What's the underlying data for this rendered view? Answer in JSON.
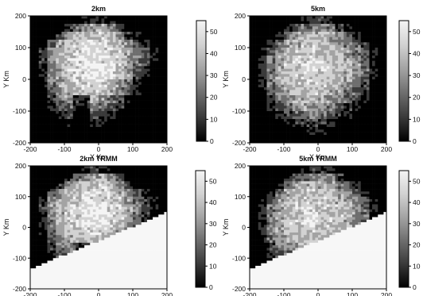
{
  "figure": {
    "colormap": [
      "#000000",
      "#3a3a3a",
      "#6e6e6e",
      "#a3a3a3",
      "#d2d2d2",
      "#f4f4f4"
    ],
    "nodata_color": "#f7f7f7"
  },
  "chart_data": [
    {
      "type": "heatmap",
      "title": "2km",
      "xlabel": "X Km",
      "ylabel": "Y Km",
      "xlim": [
        -200,
        200
      ],
      "ylim": [
        -200,
        200
      ],
      "xticks": [
        "-200",
        "-100",
        "0",
        "100",
        "200"
      ],
      "yticks": [
        "200",
        "100",
        "0",
        "-100",
        "-200"
      ],
      "colorbar": {
        "range": [
          0,
          55
        ],
        "ticks": [
          "50",
          "40",
          "30",
          "20",
          "10",
          "0"
        ]
      },
      "grid": false,
      "masked_swath": false,
      "values_dbz": [
        [
          0,
          0,
          0,
          0,
          0,
          0,
          10,
          14,
          8,
          6,
          0,
          0,
          0,
          0,
          0,
          0
        ],
        [
          0,
          0,
          0,
          0,
          12,
          22,
          28,
          30,
          34,
          25,
          15,
          0,
          0,
          0,
          0,
          0
        ],
        [
          0,
          0,
          0,
          12,
          28,
          34,
          36,
          38,
          40,
          35,
          28,
          14,
          6,
          0,
          0,
          0
        ],
        [
          0,
          0,
          18,
          30,
          36,
          40,
          42,
          44,
          40,
          38,
          34,
          28,
          18,
          8,
          0,
          0
        ],
        [
          0,
          10,
          26,
          34,
          38,
          42,
          46,
          44,
          42,
          40,
          38,
          32,
          24,
          14,
          4,
          0
        ],
        [
          0,
          12,
          28,
          36,
          40,
          44,
          48,
          46,
          44,
          42,
          40,
          34,
          26,
          16,
          6,
          0
        ],
        [
          0,
          10,
          26,
          34,
          40,
          44,
          46,
          48,
          46,
          44,
          40,
          32,
          22,
          12,
          0,
          0
        ],
        [
          0,
          8,
          24,
          32,
          38,
          42,
          44,
          46,
          44,
          42,
          36,
          28,
          18,
          8,
          0,
          0
        ],
        [
          0,
          6,
          22,
          30,
          36,
          40,
          42,
          44,
          40,
          36,
          30,
          22,
          12,
          0,
          0,
          0
        ],
        [
          0,
          0,
          18,
          28,
          32,
          36,
          38,
          40,
          36,
          32,
          24,
          16,
          6,
          0,
          0,
          0
        ],
        [
          0,
          0,
          14,
          24,
          28,
          12,
          10,
          36,
          30,
          24,
          18,
          8,
          0,
          0,
          0,
          0
        ],
        [
          0,
          0,
          8,
          18,
          20,
          8,
          6,
          28,
          24,
          16,
          10,
          0,
          0,
          0,
          0,
          0
        ],
        [
          0,
          0,
          0,
          10,
          12,
          0,
          0,
          18,
          14,
          8,
          0,
          0,
          0,
          0,
          0,
          0
        ],
        [
          0,
          0,
          0,
          0,
          6,
          0,
          0,
          8,
          6,
          0,
          0,
          0,
          0,
          0,
          0,
          0
        ],
        [
          0,
          0,
          0,
          0,
          0,
          0,
          0,
          0,
          0,
          0,
          0,
          0,
          0,
          0,
          0,
          0
        ],
        [
          0,
          0,
          0,
          0,
          0,
          0,
          0,
          0,
          0,
          0,
          0,
          0,
          0,
          0,
          0,
          0
        ]
      ]
    },
    {
      "type": "heatmap",
      "title": "5km",
      "xlabel": "X Km",
      "ylabel": "Y Km",
      "xlim": [
        -200,
        200
      ],
      "ylim": [
        -200,
        200
      ],
      "xticks": [
        "-200",
        "-100",
        "0",
        "100",
        "200"
      ],
      "yticks": [
        "200",
        "100",
        "0",
        "-100",
        "-200"
      ],
      "colorbar": {
        "range": [
          0,
          55
        ],
        "ticks": [
          "50",
          "40",
          "30",
          "20",
          "10",
          "0"
        ]
      },
      "grid": false,
      "masked_swath": false,
      "values_dbz": [
        [
          0,
          0,
          0,
          0,
          0,
          0,
          6,
          10,
          12,
          8,
          0,
          0,
          0,
          0,
          0,
          0
        ],
        [
          0,
          0,
          0,
          0,
          8,
          16,
          22,
          26,
          28,
          24,
          14,
          6,
          0,
          0,
          0,
          0
        ],
        [
          0,
          0,
          0,
          10,
          22,
          30,
          34,
          36,
          36,
          32,
          26,
          18,
          8,
          0,
          0,
          0
        ],
        [
          0,
          0,
          8,
          22,
          30,
          34,
          38,
          40,
          38,
          36,
          32,
          26,
          20,
          10,
          0,
          0
        ],
        [
          0,
          4,
          18,
          28,
          34,
          38,
          40,
          42,
          40,
          38,
          36,
          30,
          24,
          16,
          6,
          0
        ],
        [
          0,
          8,
          24,
          32,
          36,
          40,
          42,
          44,
          42,
          40,
          38,
          34,
          28,
          20,
          8,
          0
        ],
        [
          0,
          10,
          26,
          34,
          38,
          40,
          44,
          44,
          42,
          40,
          38,
          34,
          30,
          22,
          10,
          0
        ],
        [
          0,
          10,
          26,
          34,
          38,
          40,
          42,
          42,
          40,
          38,
          36,
          34,
          28,
          20,
          8,
          0
        ],
        [
          0,
          8,
          24,
          32,
          36,
          38,
          40,
          40,
          38,
          36,
          34,
          30,
          24,
          16,
          4,
          0
        ],
        [
          0,
          6,
          20,
          28,
          32,
          36,
          38,
          38,
          36,
          34,
          30,
          26,
          20,
          12,
          0,
          0
        ],
        [
          0,
          0,
          14,
          24,
          30,
          32,
          34,
          34,
          32,
          30,
          26,
          22,
          14,
          6,
          0,
          0
        ],
        [
          0,
          0,
          8,
          18,
          24,
          28,
          30,
          30,
          28,
          26,
          20,
          14,
          6,
          0,
          0,
          0
        ],
        [
          0,
          0,
          0,
          10,
          16,
          20,
          22,
          24,
          22,
          18,
          12,
          6,
          0,
          0,
          0,
          0
        ],
        [
          0,
          0,
          0,
          0,
          6,
          10,
          12,
          14,
          12,
          8,
          0,
          0,
          0,
          0,
          0,
          0
        ],
        [
          0,
          0,
          0,
          0,
          0,
          0,
          4,
          6,
          4,
          0,
          0,
          0,
          0,
          0,
          0,
          0
        ],
        [
          0,
          0,
          0,
          0,
          0,
          0,
          0,
          0,
          0,
          0,
          0,
          0,
          0,
          0,
          0,
          0
        ]
      ]
    },
    {
      "type": "heatmap",
      "title": "2km TRMM",
      "xlabel": "X Km",
      "ylabel": "Y Km",
      "xlim": [
        -200,
        200
      ],
      "ylim": [
        -200,
        200
      ],
      "xticks": [
        "-200",
        "-100",
        "0",
        "100",
        "200"
      ],
      "yticks": [
        "200",
        "100",
        "0",
        "-100",
        "-200"
      ],
      "colorbar": {
        "range": [
          0,
          55
        ],
        "ticks": [
          "50",
          "40",
          "30",
          "20",
          "10",
          "0"
        ]
      },
      "grid": false,
      "masked_swath": true,
      "values_dbz": [
        [
          0,
          0,
          0,
          0,
          0,
          0,
          10,
          14,
          8,
          6,
          0,
          0,
          0,
          0,
          0,
          0
        ],
        [
          0,
          0,
          0,
          0,
          12,
          22,
          28,
          30,
          34,
          25,
          15,
          0,
          0,
          0,
          0,
          0
        ],
        [
          0,
          0,
          0,
          12,
          28,
          34,
          36,
          38,
          40,
          35,
          28,
          14,
          6,
          0,
          0,
          0
        ],
        [
          0,
          0,
          18,
          30,
          36,
          40,
          42,
          44,
          40,
          38,
          34,
          28,
          18,
          8,
          0,
          0
        ],
        [
          0,
          10,
          26,
          34,
          38,
          42,
          46,
          44,
          42,
          40,
          38,
          32,
          24,
          14,
          4,
          0
        ],
        [
          0,
          12,
          28,
          36,
          40,
          44,
          48,
          46,
          44,
          42,
          40,
          34,
          26,
          16,
          6,
          0
        ],
        [
          0,
          10,
          26,
          34,
          40,
          44,
          46,
          48,
          46,
          44,
          40,
          32,
          22,
          12,
          0,
          0
        ],
        [
          0,
          8,
          24,
          32,
          38,
          42,
          44,
          46,
          44,
          42,
          36,
          28,
          18,
          8,
          0,
          0
        ],
        [
          0,
          6,
          22,
          30,
          36,
          40,
          42,
          44,
          40,
          36,
          30,
          22,
          12,
          0,
          0,
          0
        ],
        [
          0,
          0,
          18,
          28,
          32,
          36,
          38,
          40,
          36,
          32,
          24,
          16,
          6,
          0,
          0,
          0
        ],
        [
          0,
          0,
          14,
          24,
          28,
          12,
          10,
          36,
          30,
          24,
          18,
          8,
          0,
          0,
          0,
          0
        ],
        [
          0,
          0,
          8,
          18,
          20,
          8,
          6,
          28,
          24,
          16,
          10,
          0,
          0,
          0,
          0,
          0
        ],
        [
          0,
          0,
          0,
          10,
          12,
          0,
          0,
          18,
          14,
          8,
          0,
          0,
          0,
          0,
          0,
          0
        ],
        [
          0,
          0,
          0,
          0,
          6,
          0,
          0,
          8,
          6,
          0,
          0,
          0,
          0,
          0,
          0,
          0
        ],
        [
          0,
          0,
          0,
          0,
          0,
          0,
          0,
          0,
          0,
          0,
          0,
          0,
          0,
          0,
          0,
          0
        ],
        [
          0,
          0,
          0,
          0,
          0,
          0,
          0,
          0,
          0,
          0,
          0,
          0,
          0,
          0,
          0,
          0
        ]
      ]
    },
    {
      "type": "heatmap",
      "title": "5km TRMM",
      "xlabel": "X Km",
      "ylabel": "Y Km",
      "xlim": [
        -200,
        200
      ],
      "ylim": [
        -200,
        200
      ],
      "xticks": [
        "-200",
        "-100",
        "0",
        "100",
        "200"
      ],
      "yticks": [
        "200",
        "100",
        "0",
        "-100",
        "-200"
      ],
      "colorbar": {
        "range": [
          0,
          55
        ],
        "ticks": [
          "50",
          "40",
          "30",
          "20",
          "10",
          "0"
        ]
      },
      "grid": false,
      "masked_swath": true,
      "values_dbz": [
        [
          0,
          0,
          0,
          0,
          0,
          0,
          6,
          10,
          12,
          8,
          0,
          0,
          0,
          0,
          0,
          0
        ],
        [
          0,
          0,
          0,
          0,
          8,
          16,
          22,
          26,
          28,
          24,
          14,
          6,
          0,
          0,
          0,
          0
        ],
        [
          0,
          0,
          0,
          10,
          22,
          30,
          34,
          36,
          36,
          32,
          26,
          18,
          8,
          0,
          0,
          0
        ],
        [
          0,
          0,
          8,
          22,
          30,
          34,
          38,
          40,
          38,
          36,
          32,
          26,
          20,
          10,
          0,
          0
        ],
        [
          0,
          4,
          18,
          28,
          34,
          38,
          40,
          42,
          40,
          38,
          36,
          30,
          24,
          16,
          6,
          0
        ],
        [
          0,
          8,
          24,
          32,
          36,
          40,
          42,
          44,
          42,
          40,
          38,
          34,
          28,
          20,
          8,
          0
        ],
        [
          0,
          10,
          26,
          34,
          38,
          40,
          44,
          44,
          42,
          40,
          38,
          34,
          30,
          22,
          10,
          0
        ],
        [
          0,
          10,
          26,
          34,
          38,
          40,
          42,
          42,
          40,
          38,
          36,
          34,
          28,
          20,
          8,
          0
        ],
        [
          0,
          8,
          24,
          32,
          36,
          38,
          40,
          40,
          38,
          36,
          34,
          30,
          24,
          16,
          4,
          0
        ],
        [
          0,
          6,
          20,
          28,
          32,
          36,
          38,
          38,
          36,
          34,
          30,
          26,
          20,
          12,
          0,
          0
        ],
        [
          0,
          0,
          14,
          24,
          30,
          32,
          34,
          34,
          32,
          30,
          26,
          22,
          14,
          6,
          0,
          0
        ],
        [
          0,
          0,
          8,
          18,
          24,
          28,
          30,
          30,
          28,
          26,
          20,
          14,
          6,
          0,
          0,
          0
        ],
        [
          0,
          0,
          0,
          10,
          16,
          20,
          22,
          24,
          22,
          18,
          12,
          6,
          0,
          0,
          0,
          0
        ],
        [
          0,
          0,
          0,
          0,
          6,
          10,
          12,
          14,
          12,
          8,
          0,
          0,
          0,
          0,
          0,
          0
        ],
        [
          0,
          0,
          0,
          0,
          0,
          0,
          4,
          6,
          4,
          0,
          0,
          0,
          0,
          0,
          0,
          0
        ],
        [
          0,
          0,
          0,
          0,
          0,
          0,
          0,
          0,
          0,
          0,
          0,
          0,
          0,
          0,
          0,
          0
        ]
      ]
    }
  ]
}
